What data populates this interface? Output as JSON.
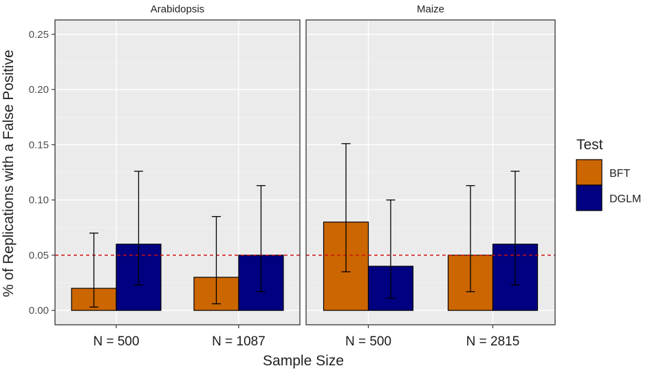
{
  "chart_data": {
    "type": "bar",
    "xlabel": "Sample Size",
    "ylabel": "% of Replications with a False Positive",
    "ylim": [
      -0.013,
      0.263
    ],
    "yticks": [
      "0.00",
      "0.05",
      "0.10",
      "0.15",
      "0.20",
      "0.25"
    ],
    "reference_line": {
      "y": 0.05,
      "color": "#cc1111",
      "style": "dashed"
    },
    "legend": {
      "title": "Test",
      "placement": "right",
      "entries": [
        {
          "label": "BFT",
          "color": "#cc6600"
        },
        {
          "label": "DGLM",
          "color": "#000080"
        }
      ]
    },
    "panels": [
      {
        "title": "Arabidopsis",
        "categories": [
          "N = 500",
          "N = 1087"
        ],
        "series": [
          {
            "name": "BFT",
            "color": "#cc6600",
            "values": [
              0.02,
              0.03
            ],
            "error_low": [
              0.003,
              0.006
            ],
            "error_high": [
              0.07,
              0.085
            ]
          },
          {
            "name": "DGLM",
            "color": "#000080",
            "values": [
              0.06,
              0.05
            ],
            "error_low": [
              0.023,
              0.017
            ],
            "error_high": [
              0.126,
              0.113
            ]
          }
        ]
      },
      {
        "title": "Maize",
        "categories": [
          "N = 500",
          "N = 2815"
        ],
        "series": [
          {
            "name": "BFT",
            "color": "#cc6600",
            "values": [
              0.08,
              0.05
            ],
            "error_low": [
              0.035,
              0.017
            ],
            "error_high": [
              0.151,
              0.113
            ]
          },
          {
            "name": "DGLM",
            "color": "#000080",
            "values": [
              0.04,
              0.06
            ],
            "error_low": [
              0.011,
              0.023
            ],
            "error_high": [
              0.1,
              0.126
            ]
          }
        ]
      }
    ]
  }
}
